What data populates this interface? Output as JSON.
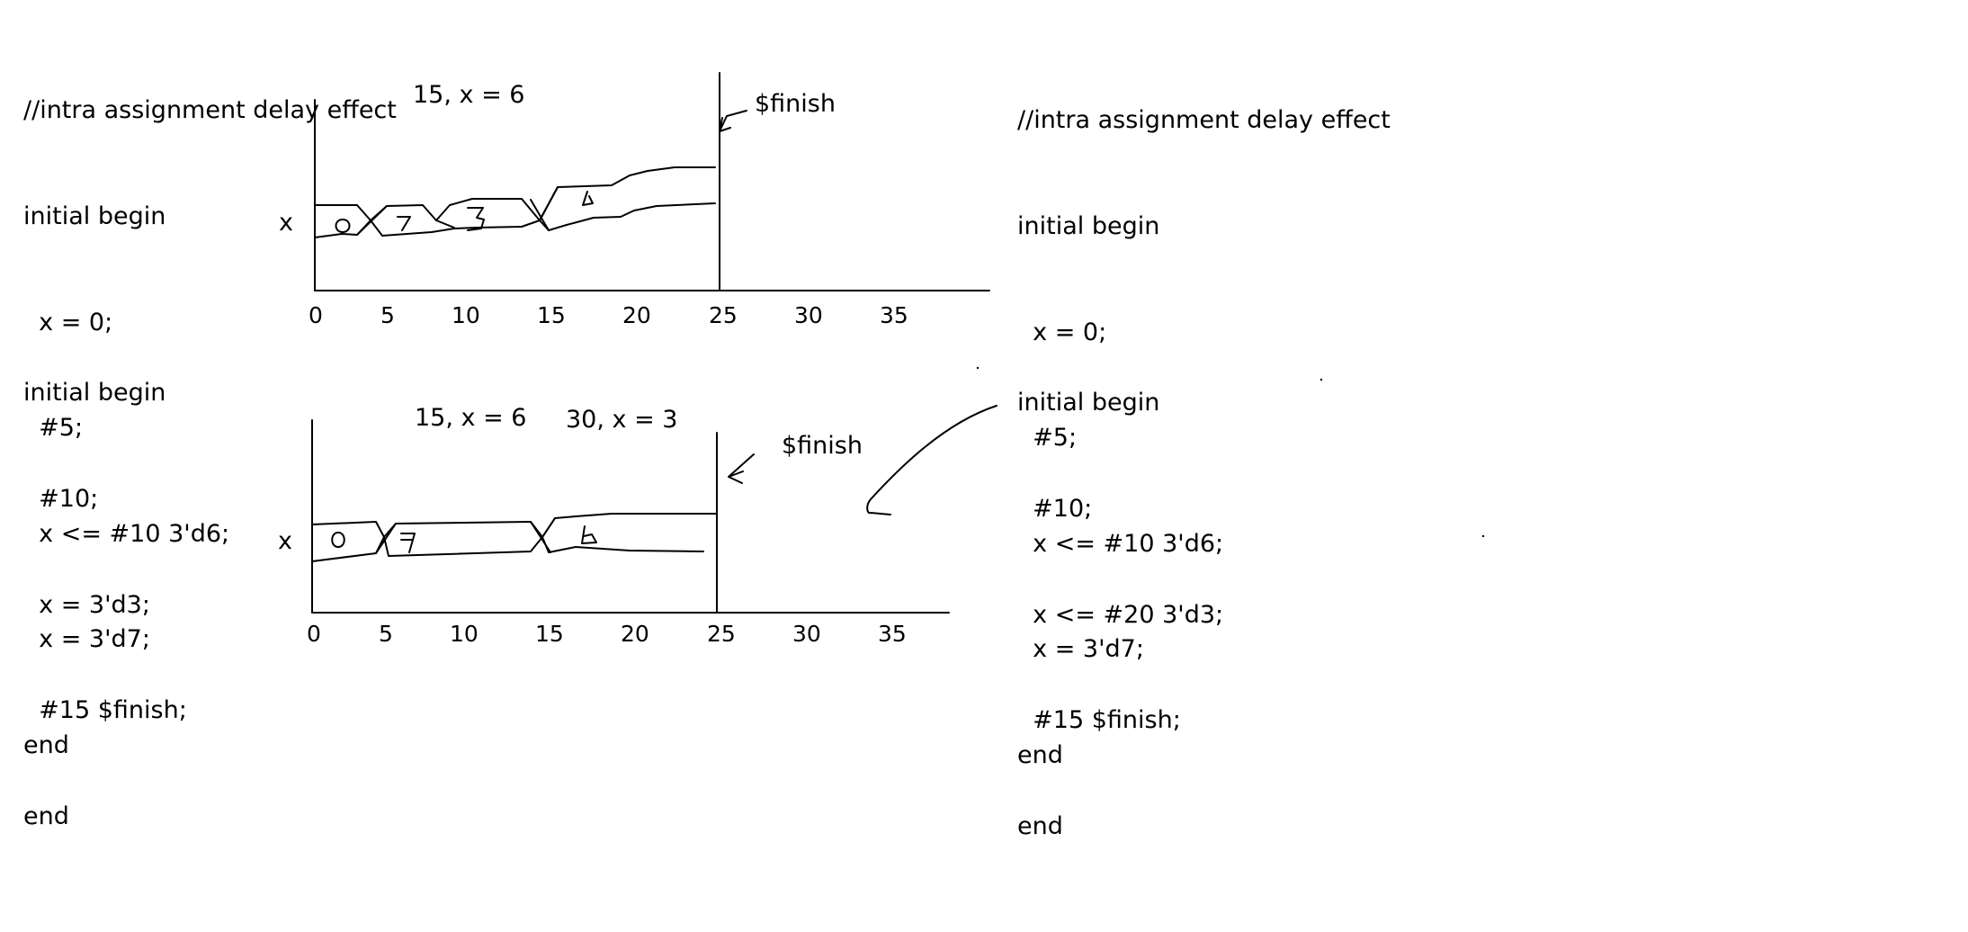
{
  "code_blocks": {
    "left_block1": [
      "//intra assignment delay effect",
      "initial begin",
      "  x = 0;",
      "  #5;",
      "  x <= #10 3'd6;",
      "  x = 3'd7;",
      "end"
    ],
    "left_block2": [
      "initial begin",
      "  #10;",
      "  x = 3'd3;",
      "  #15 $finish;",
      "end"
    ],
    "right_block1": [
      "//intra assignment delay effect",
      "initial begin",
      "  x = 0;",
      "  #5;",
      "  x <= #10 3'd6;",
      "  x = 3'd7;",
      "end"
    ],
    "right_block2": [
      "initial begin",
      "  #10;",
      "  x <= #20 3'd3;",
      "  #15 $finish;",
      "end"
    ]
  },
  "waveform_top": {
    "signal_label": "x",
    "annotation": "15, x = 6",
    "finish_label": "$finish",
    "ticks": [
      "0",
      "5",
      "10",
      "15",
      "20",
      "25",
      "30",
      "35"
    ],
    "segment_values": [
      "0",
      "7",
      "3",
      "6"
    ]
  },
  "waveform_bottom": {
    "signal_label": "x",
    "annotation_1": "15, x = 6",
    "annotation_2": "30, x = 3",
    "finish_label": "$finish",
    "ticks": [
      "0",
      "5",
      "10",
      "15",
      "20",
      "25",
      "30",
      "35"
    ],
    "segment_values": [
      "0",
      "7",
      "6"
    ]
  }
}
